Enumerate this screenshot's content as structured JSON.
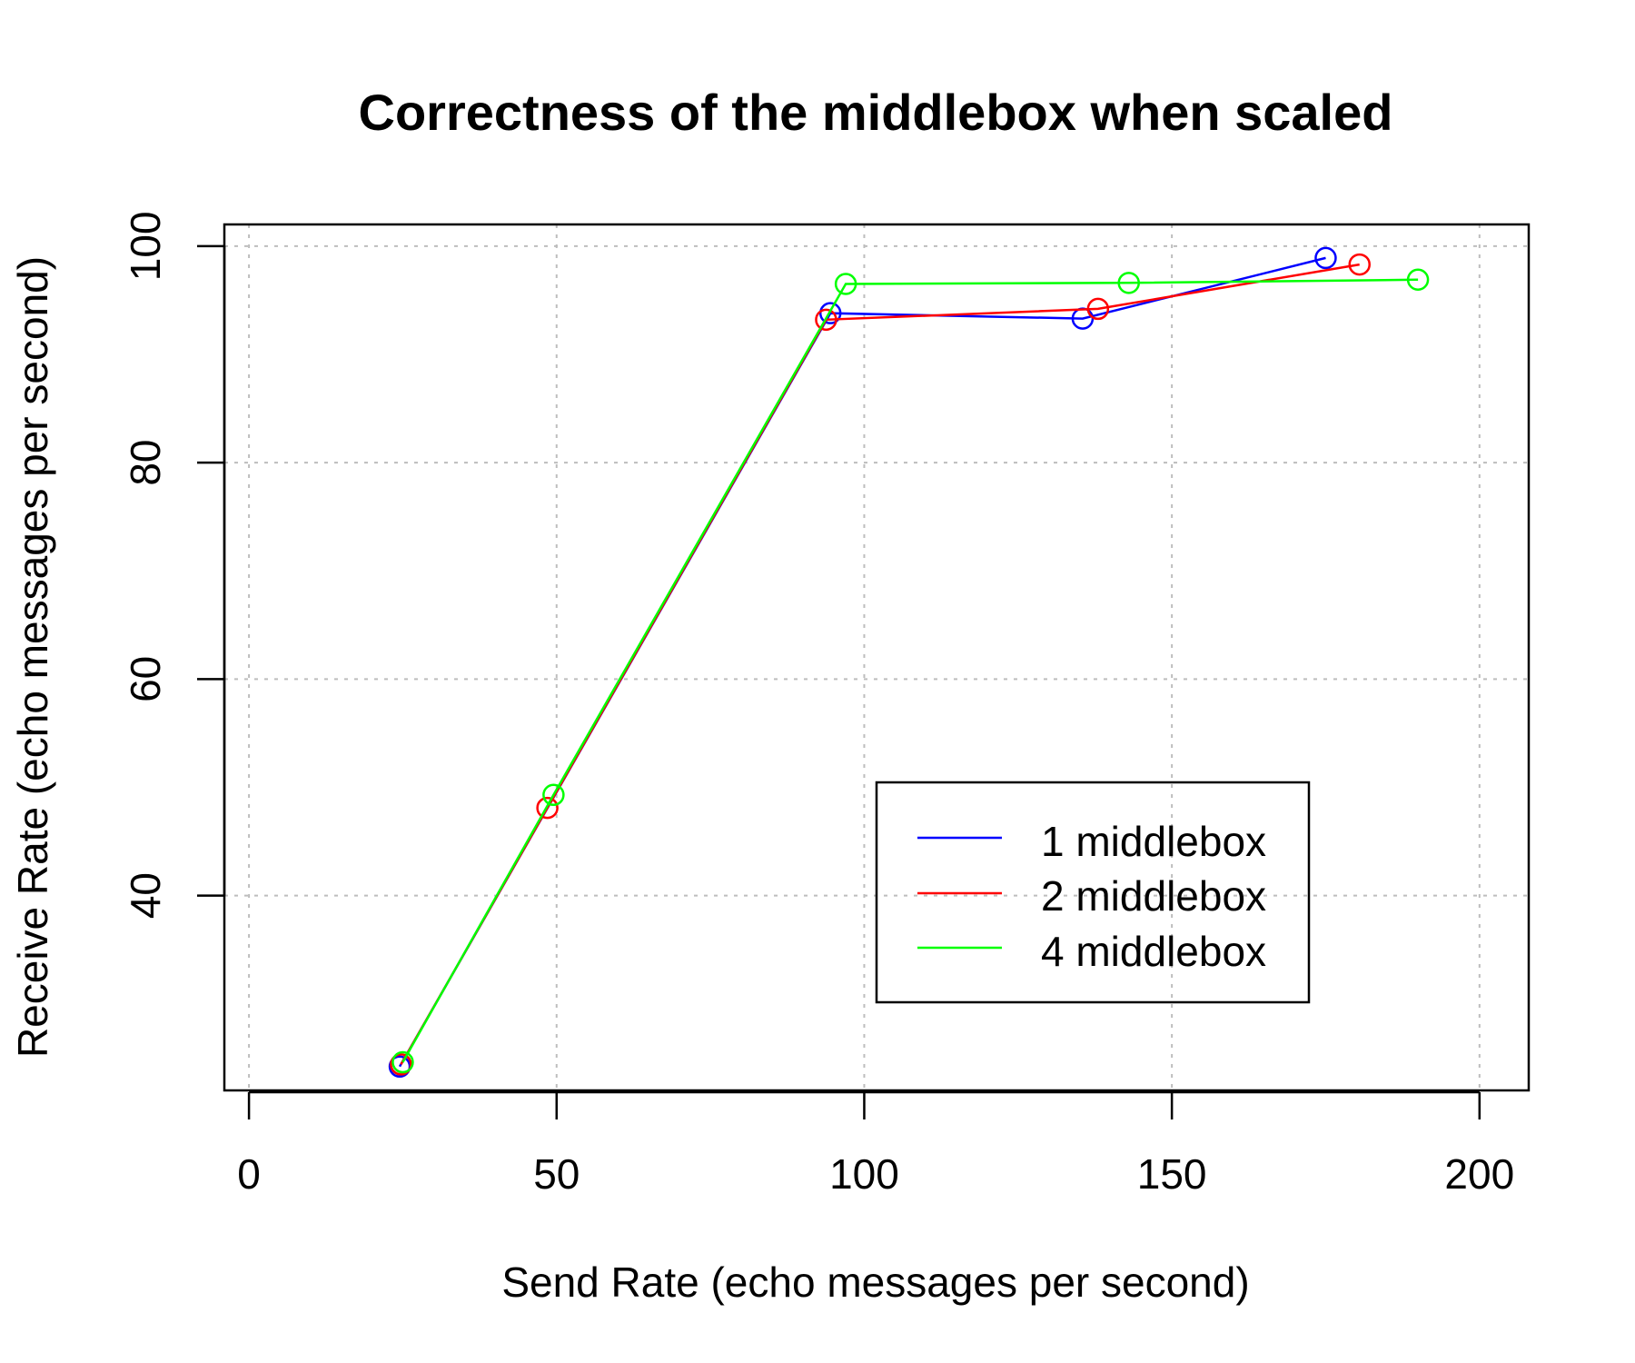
{
  "chart_data": {
    "type": "line",
    "title": "Correctness of the middlebox when scaled",
    "xlabel": "Send Rate (echo messages per second)",
    "ylabel": "Receive Rate (echo messages per second)",
    "xlim": [
      -4,
      208
    ],
    "ylim": [
      22,
      102
    ],
    "xticks": [
      0,
      50,
      100,
      150,
      200
    ],
    "yticks": [
      40,
      60,
      80,
      100
    ],
    "grid": true,
    "legend_position": "bottom-right",
    "marker": "open-circle",
    "series": [
      {
        "name": "1 middlebox",
        "color": "#0000ff",
        "x": [
          24.5,
          94.5,
          135.5,
          175
        ],
        "y": [
          24.2,
          93.8,
          93.3,
          98.9
        ]
      },
      {
        "name": "2 middlebox",
        "color": "#ff0000",
        "x": [
          24.7,
          48.5,
          93.8,
          138,
          180.5
        ],
        "y": [
          24.4,
          48.1,
          93.2,
          94.2,
          98.3
        ]
      },
      {
        "name": "4 middlebox",
        "color": "#00ff00",
        "x": [
          25,
          49.5,
          97,
          143,
          190
        ],
        "y": [
          24.6,
          49.3,
          96.5,
          96.6,
          96.9
        ]
      }
    ]
  }
}
